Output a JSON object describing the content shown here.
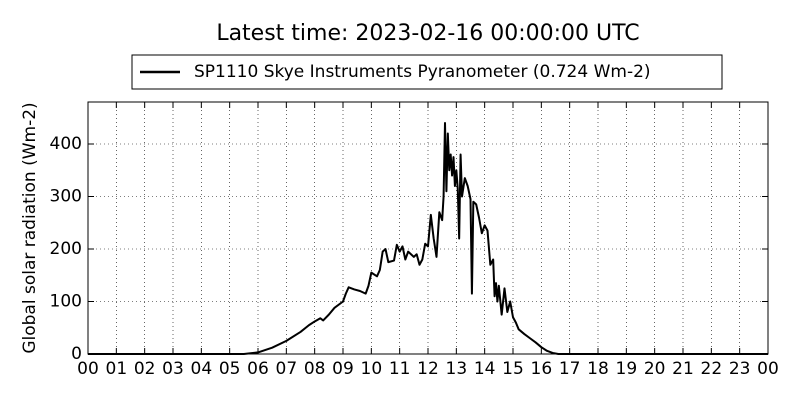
{
  "chart_data": {
    "type": "line",
    "title": "Latest time: 2023-02-16 00:00:00 UTC",
    "y_label": "Global solar radiation (Wm-2)",
    "x": [
      0,
      5.5,
      6.0,
      6.5,
      7.0,
      7.5,
      7.8,
      8.0,
      8.2,
      8.3,
      8.5,
      8.7,
      9.0,
      9.1,
      9.2,
      9.4,
      9.6,
      9.8,
      9.9,
      10.0,
      10.2,
      10.3,
      10.4,
      10.5,
      10.6,
      10.8,
      10.9,
      11.0,
      11.1,
      11.2,
      11.3,
      11.5,
      11.6,
      11.7,
      11.8,
      11.9,
      12.0,
      12.1,
      12.2,
      12.3,
      12.4,
      12.5,
      12.55,
      12.6,
      12.65,
      12.7,
      12.75,
      12.8,
      12.85,
      12.9,
      12.95,
      13.0,
      13.05,
      13.1,
      13.15,
      13.2,
      13.3,
      13.4,
      13.5,
      13.55,
      13.6,
      13.7,
      13.8,
      13.9,
      14.0,
      14.1,
      14.2,
      14.3,
      14.35,
      14.4,
      14.45,
      14.5,
      14.6,
      14.7,
      14.8,
      14.9,
      15.0,
      15.1,
      15.2,
      15.4,
      15.6,
      15.8,
      16.0,
      16.2,
      16.4,
      16.6,
      24
    ],
    "series": [
      {
        "name": "SP1110 Skye Instruments Pyranometer (0.724 Wm-2)",
        "color": "#000000",
        "values": [
          0,
          0,
          3,
          12,
          25,
          42,
          55,
          62,
          68,
          64,
          75,
          88,
          100,
          115,
          127,
          123,
          120,
          115,
          130,
          155,
          148,
          160,
          195,
          200,
          175,
          178,
          208,
          195,
          205,
          180,
          195,
          185,
          190,
          170,
          180,
          210,
          205,
          265,
          220,
          185,
          270,
          255,
          300,
          440,
          310,
          420,
          350,
          380,
          340,
          375,
          320,
          350,
          315,
          220,
          380,
          300,
          335,
          320,
          295,
          115,
          290,
          285,
          260,
          230,
          245,
          235,
          170,
          180,
          110,
          135,
          100,
          130,
          75,
          125,
          80,
          100,
          70,
          60,
          47,
          38,
          30,
          22,
          13,
          6,
          2,
          0,
          0
        ]
      }
    ],
    "xlim": [
      0,
      24
    ],
    "ylim": [
      0,
      480
    ],
    "xticks": [
      {
        "value": 0,
        "label": "00"
      },
      {
        "value": 1,
        "label": "01"
      },
      {
        "value": 2,
        "label": "02"
      },
      {
        "value": 3,
        "label": "03"
      },
      {
        "value": 4,
        "label": "04"
      },
      {
        "value": 5,
        "label": "05"
      },
      {
        "value": 6,
        "label": "06"
      },
      {
        "value": 7,
        "label": "07"
      },
      {
        "value": 8,
        "label": "08"
      },
      {
        "value": 9,
        "label": "09"
      },
      10,
      11,
      12,
      13,
      14,
      15,
      16,
      17,
      18,
      19,
      20,
      21,
      22,
      23,
      {
        "value": 24,
        "label": "00"
      }
    ],
    "yticks": [
      0,
      100,
      200,
      300,
      400
    ],
    "grid": true
  }
}
